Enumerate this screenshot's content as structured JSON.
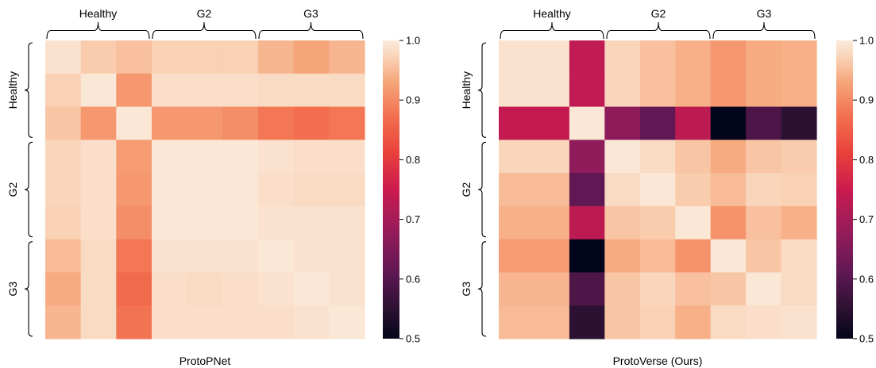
{
  "chart_data": [
    {
      "type": "heatmap",
      "caption": "ProtoPNet",
      "groups": [
        "Healthy",
        "G2",
        "G3"
      ],
      "colorbar": {
        "min": 0.5,
        "max": 1.0,
        "ticks": [
          "0.5",
          "0.6",
          "0.7",
          "0.8",
          "0.9",
          "1.0"
        ]
      },
      "matrix": [
        [
          0.99,
          0.965,
          0.955,
          0.97,
          0.97,
          0.97,
          0.945,
          0.93,
          0.945
        ],
        [
          0.97,
          0.995,
          0.915,
          0.985,
          0.985,
          0.985,
          0.98,
          0.98,
          0.98
        ],
        [
          0.96,
          0.915,
          0.995,
          0.915,
          0.915,
          0.905,
          0.88,
          0.87,
          0.88
        ],
        [
          0.975,
          0.985,
          0.92,
          0.995,
          0.995,
          0.995,
          0.99,
          0.985,
          0.985
        ],
        [
          0.975,
          0.985,
          0.915,
          0.995,
          0.995,
          0.995,
          0.985,
          0.98,
          0.98
        ],
        [
          0.97,
          0.985,
          0.905,
          0.995,
          0.995,
          0.995,
          0.99,
          0.99,
          0.99
        ],
        [
          0.95,
          0.98,
          0.88,
          0.99,
          0.99,
          0.99,
          0.995,
          0.99,
          0.99
        ],
        [
          0.935,
          0.98,
          0.865,
          0.985,
          0.98,
          0.985,
          0.99,
          0.995,
          0.99
        ],
        [
          0.945,
          0.98,
          0.875,
          0.985,
          0.985,
          0.985,
          0.985,
          0.99,
          0.995
        ]
      ]
    },
    {
      "type": "heatmap",
      "caption": "ProtoVerse (Ours)",
      "groups": [
        "Healthy",
        "G2",
        "G3"
      ],
      "colorbar": {
        "min": 0.5,
        "max": 1.0,
        "ticks": [
          "0.5",
          "0.6",
          "0.7",
          "0.8",
          "0.9",
          "1.0"
        ]
      },
      "matrix": [
        [
          0.99,
          0.99,
          0.735,
          0.975,
          0.955,
          0.94,
          0.915,
          0.935,
          0.94
        ],
        [
          0.99,
          0.99,
          0.735,
          0.975,
          0.955,
          0.94,
          0.915,
          0.935,
          0.94
        ],
        [
          0.74,
          0.74,
          0.995,
          0.67,
          0.61,
          0.73,
          0.5,
          0.59,
          0.55
        ],
        [
          0.975,
          0.975,
          0.67,
          0.995,
          0.98,
          0.96,
          0.935,
          0.96,
          0.965
        ],
        [
          0.95,
          0.95,
          0.61,
          0.98,
          0.995,
          0.965,
          0.95,
          0.975,
          0.97
        ],
        [
          0.94,
          0.94,
          0.73,
          0.96,
          0.965,
          0.995,
          0.91,
          0.955,
          0.94
        ],
        [
          0.92,
          0.92,
          0.5,
          0.935,
          0.95,
          0.91,
          0.995,
          0.96,
          0.98
        ],
        [
          0.945,
          0.945,
          0.59,
          0.96,
          0.975,
          0.955,
          0.96,
          0.995,
          0.98
        ],
        [
          0.95,
          0.95,
          0.55,
          0.96,
          0.97,
          0.94,
          0.98,
          0.985,
          0.99
        ]
      ]
    }
  ]
}
